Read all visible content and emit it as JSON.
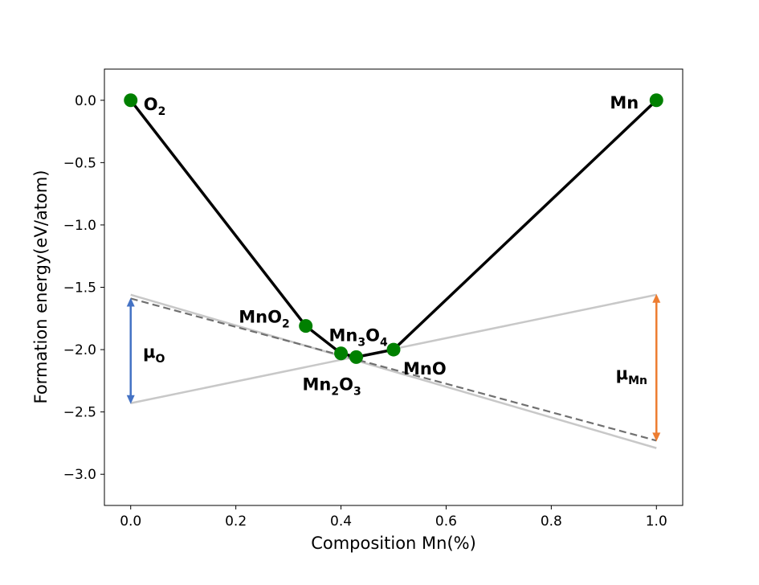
{
  "chart_data": {
    "type": "line",
    "xlabel": "Composition Mn(%)",
    "ylabel": "Formation energy(eV/atom)",
    "xlim": [
      -0.05,
      1.05
    ],
    "ylim": [
      -3.25,
      0.25
    ],
    "xticks": [
      0.0,
      0.2,
      0.4,
      0.6,
      0.8,
      1.0
    ],
    "xtick_labels": [
      "0.0",
      "0.2",
      "0.4",
      "0.6",
      "0.8",
      "1.0"
    ],
    "yticks": [
      0.0,
      -0.5,
      -1.0,
      -1.5,
      -2.0,
      -2.5,
      -3.0
    ],
    "ytick_labels": [
      "0.0",
      "−0.5",
      "−1.0",
      "−1.5",
      "−2.0",
      "−2.5",
      "−3.0"
    ],
    "grid": false,
    "hull_line": {
      "color": "#000000",
      "x": [
        0.0,
        0.333,
        0.4,
        0.429,
        0.5,
        1.0
      ],
      "y": [
        0.0,
        -1.81,
        -2.03,
        -2.06,
        -2.0,
        0.0
      ]
    },
    "points": [
      {
        "x": 0.0,
        "y": 0.0,
        "label": [
          {
            "t": "O"
          },
          {
            "t": "2",
            "sub": true
          }
        ]
      },
      {
        "x": 0.333,
        "y": -1.81,
        "label": [
          {
            "t": "MnO"
          },
          {
            "t": "2",
            "sub": true
          }
        ]
      },
      {
        "x": 0.4,
        "y": -2.03,
        "label": [
          {
            "t": "Mn"
          },
          {
            "t": "2",
            "sub": true
          },
          {
            "t": "O"
          },
          {
            "t": "3",
            "sub": true
          }
        ]
      },
      {
        "x": 0.429,
        "y": -2.06,
        "label": [
          {
            "t": "Mn"
          },
          {
            "t": "3",
            "sub": true
          },
          {
            "t": "O"
          },
          {
            "t": "4",
            "sub": true
          }
        ]
      },
      {
        "x": 0.5,
        "y": -2.0,
        "label": [
          {
            "t": "MnO"
          }
        ]
      },
      {
        "x": 1.0,
        "y": 0.0,
        "label": [
          {
            "t": "Mn"
          }
        ]
      }
    ],
    "point_color": "#008000",
    "reference_lines": [
      {
        "name": "solid-gray-1",
        "x": [
          0.0,
          1.0
        ],
        "y": [
          -1.56,
          -2.79
        ],
        "color": "#c8c8c8",
        "dash": false
      },
      {
        "name": "solid-gray-2",
        "x": [
          0.0,
          1.0
        ],
        "y": [
          -2.43,
          -1.56
        ],
        "color": "#c8c8c8",
        "dash": false
      },
      {
        "name": "tangent-dashed",
        "x": [
          0.0,
          1.0
        ],
        "y": [
          -1.59,
          -2.73
        ],
        "color": "#707070",
        "dash": true
      }
    ],
    "arrows": [
      {
        "x": 0.0,
        "y1": -1.59,
        "y2": -2.43,
        "color": "#4472c4",
        "label": [
          {
            "t": "μ"
          },
          {
            "t": "O",
            "sub": true
          }
        ]
      },
      {
        "x": 1.0,
        "y1": -1.56,
        "y2": -2.73,
        "color": "#ed7d31",
        "label": [
          {
            "t": "μ"
          },
          {
            "t": "Mn",
            "sub": true
          }
        ]
      }
    ]
  }
}
